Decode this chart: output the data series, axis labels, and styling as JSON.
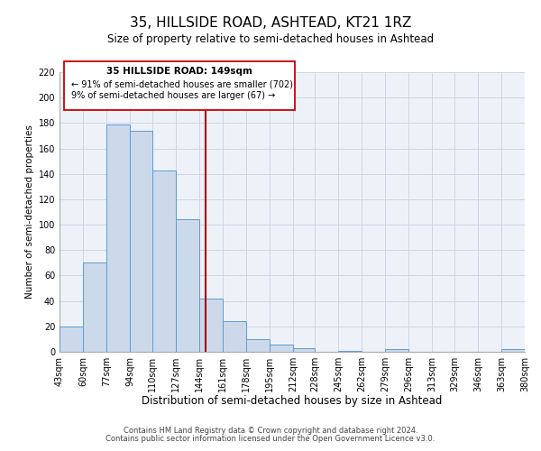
{
  "title": "35, HILLSIDE ROAD, ASHTEAD, KT21 1RZ",
  "subtitle": "Size of property relative to semi-detached houses in Ashtead",
  "xlabel": "Distribution of semi-detached houses by size in Ashtead",
  "ylabel": "Number of semi-detached properties",
  "bin_edges": [
    43,
    60,
    77,
    94,
    110,
    127,
    144,
    161,
    178,
    195,
    212,
    228,
    245,
    262,
    279,
    296,
    313,
    329,
    346,
    363,
    380
  ],
  "bar_heights": [
    20,
    70,
    179,
    174,
    143,
    104,
    42,
    24,
    10,
    6,
    3,
    0,
    1,
    0,
    2,
    0,
    0,
    0,
    0,
    2
  ],
  "bar_facecolor": "#ccd9ea",
  "bar_edgecolor": "#5b9bd5",
  "vline_x": 149,
  "vline_color": "#aa0000",
  "ylim": [
    0,
    220
  ],
  "yticks": [
    0,
    20,
    40,
    60,
    80,
    100,
    120,
    140,
    160,
    180,
    200,
    220
  ],
  "xtick_labels": [
    "43sqm",
    "60sqm",
    "77sqm",
    "94sqm",
    "110sqm",
    "127sqm",
    "144sqm",
    "161sqm",
    "178sqm",
    "195sqm",
    "212sqm",
    "228sqm",
    "245sqm",
    "262sqm",
    "279sqm",
    "296sqm",
    "313sqm",
    "329sqm",
    "346sqm",
    "363sqm",
    "380sqm"
  ],
  "annotation_box_text_line1": "35 HILLSIDE ROAD: 149sqm",
  "annotation_box_text_line2": "← 91% of semi-detached houses are smaller (702)",
  "annotation_box_text_line3": "9% of semi-detached houses are larger (67) →",
  "footer_line1": "Contains HM Land Registry data © Crown copyright and database right 2024.",
  "footer_line2": "Contains public sector information licensed under the Open Government Licence v3.0.",
  "grid_color": "#ccd6e8",
  "background_color": "#eef2f8",
  "title_fontsize": 11,
  "subtitle_fontsize": 8.5,
  "xlabel_fontsize": 8.5,
  "ylabel_fontsize": 7.5,
  "tick_fontsize": 7,
  "footer_fontsize": 6,
  "annot_fontsize_line1": 7.5,
  "annot_fontsize_lines": 7
}
